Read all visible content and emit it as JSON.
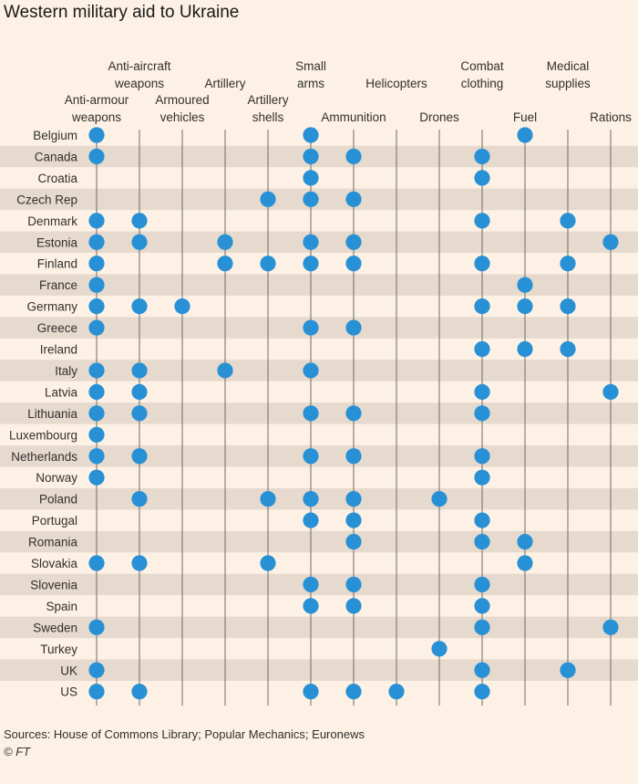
{
  "title": "Western military aid to Ukraine",
  "source": "Sources: House of Commons Library; Popular Mechanics; Euronews",
  "credit": "© FT",
  "colors": {
    "dot": "#2890d4",
    "band": "#e6d9cd",
    "line": "#6e6a66",
    "background": "#fcf1e4"
  },
  "chart_data": {
    "type": "table",
    "columns": [
      [
        "Anti-armour",
        "weapons"
      ],
      [
        "Anti-aircraft",
        "weapons"
      ],
      [
        "Armoured",
        "vehicles"
      ],
      [
        "Artillery"
      ],
      [
        "Artillery",
        "shells"
      ],
      [
        "Small",
        "arms"
      ],
      [
        "Ammunition"
      ],
      [
        "Helicopters"
      ],
      [
        "Drones"
      ],
      [
        "Combat",
        "clothing"
      ],
      [
        "Fuel"
      ],
      [
        "Medical",
        "supplies"
      ],
      [
        "Rations"
      ]
    ],
    "rows": [
      {
        "country": "Belgium",
        "cols": [
          0,
          5,
          10
        ]
      },
      {
        "country": "Canada",
        "cols": [
          0,
          5,
          6,
          9
        ]
      },
      {
        "country": "Croatia",
        "cols": [
          5,
          9
        ]
      },
      {
        "country": "Czech Rep",
        "cols": [
          4,
          5,
          6
        ]
      },
      {
        "country": "Denmark",
        "cols": [
          0,
          1,
          9,
          11
        ]
      },
      {
        "country": "Estonia",
        "cols": [
          0,
          1,
          3,
          5,
          6,
          12
        ]
      },
      {
        "country": "Finland",
        "cols": [
          0,
          3,
          4,
          5,
          6,
          9,
          11
        ]
      },
      {
        "country": "France",
        "cols": [
          0,
          10
        ]
      },
      {
        "country": "Germany",
        "cols": [
          0,
          1,
          2,
          9,
          10,
          11
        ]
      },
      {
        "country": "Greece",
        "cols": [
          0,
          5,
          6
        ]
      },
      {
        "country": "Ireland",
        "cols": [
          9,
          10,
          11
        ]
      },
      {
        "country": "Italy",
        "cols": [
          0,
          1,
          3,
          5
        ]
      },
      {
        "country": "Latvia",
        "cols": [
          0,
          1,
          9,
          12
        ]
      },
      {
        "country": "Lithuania",
        "cols": [
          0,
          1,
          5,
          6,
          9
        ]
      },
      {
        "country": "Luxembourg",
        "cols": [
          0
        ]
      },
      {
        "country": "Netherlands",
        "cols": [
          0,
          1,
          5,
          6,
          9
        ]
      },
      {
        "country": "Norway",
        "cols": [
          0,
          9
        ]
      },
      {
        "country": "Poland",
        "cols": [
          1,
          4,
          5,
          6,
          8
        ]
      },
      {
        "country": "Portugal",
        "cols": [
          5,
          6,
          9
        ]
      },
      {
        "country": "Romania",
        "cols": [
          6,
          9,
          10
        ]
      },
      {
        "country": "Slovakia",
        "cols": [
          0,
          1,
          4,
          10
        ]
      },
      {
        "country": "Slovenia",
        "cols": [
          5,
          6,
          9
        ]
      },
      {
        "country": "Spain",
        "cols": [
          5,
          6,
          9
        ]
      },
      {
        "country": "Sweden",
        "cols": [
          0,
          9,
          12
        ]
      },
      {
        "country": "Turkey",
        "cols": [
          8
        ]
      },
      {
        "country": "UK",
        "cols": [
          0,
          9,
          11
        ]
      },
      {
        "country": "US",
        "cols": [
          0,
          1,
          5,
          6,
          7,
          9
        ]
      }
    ]
  }
}
